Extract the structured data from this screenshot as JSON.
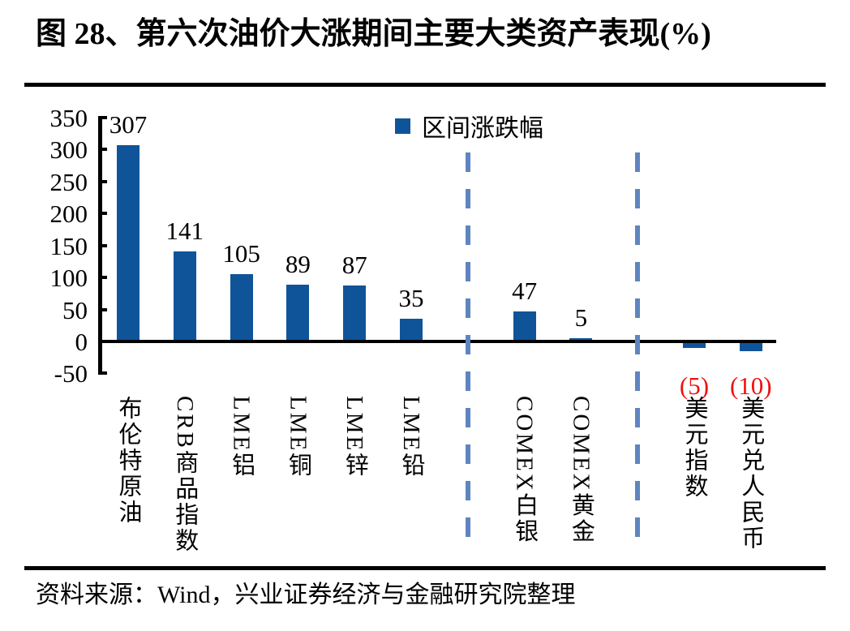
{
  "title": "图 28、第六次油价大涨期间主要大类资产表现(%)",
  "legend": {
    "label": "区间涨跌幅"
  },
  "source": "资料来源：Wind，兴业证券经济与金融研究院整理",
  "colors": {
    "bar": "#0f5499",
    "negative_value_label": "#ee1111",
    "separator": "#5e85c0",
    "axis": "#000000"
  },
  "chart_data": {
    "type": "bar",
    "title": "图 28、第六次油价大涨期间主要大类资产表现(%)",
    "series_name": "区间涨跌幅",
    "categories": [
      "布伦特原油",
      "CRB商品指数",
      "LME铝",
      "LME铜",
      "LME锌",
      "LME铅",
      "COMEX白银",
      "COMEX黄金",
      "美元指数",
      "美元兑人民币"
    ],
    "values": [
      307,
      141,
      105,
      89,
      87,
      35,
      47,
      5,
      -5,
      -10
    ],
    "value_labels": [
      "307",
      "141",
      "105",
      "89",
      "87",
      "35",
      "47",
      "5",
      "(5)",
      "(10)"
    ],
    "y_ticks": [
      350,
      300,
      250,
      200,
      150,
      100,
      50,
      0,
      -50
    ],
    "ylim": [
      -50,
      350
    ],
    "xlabel": "",
    "ylabel": "",
    "grid": false,
    "legend_position": "top-center",
    "separators_after_index": [
      5,
      7
    ],
    "source": "资料来源：Wind，兴业证券经济与金融研究院整理"
  }
}
